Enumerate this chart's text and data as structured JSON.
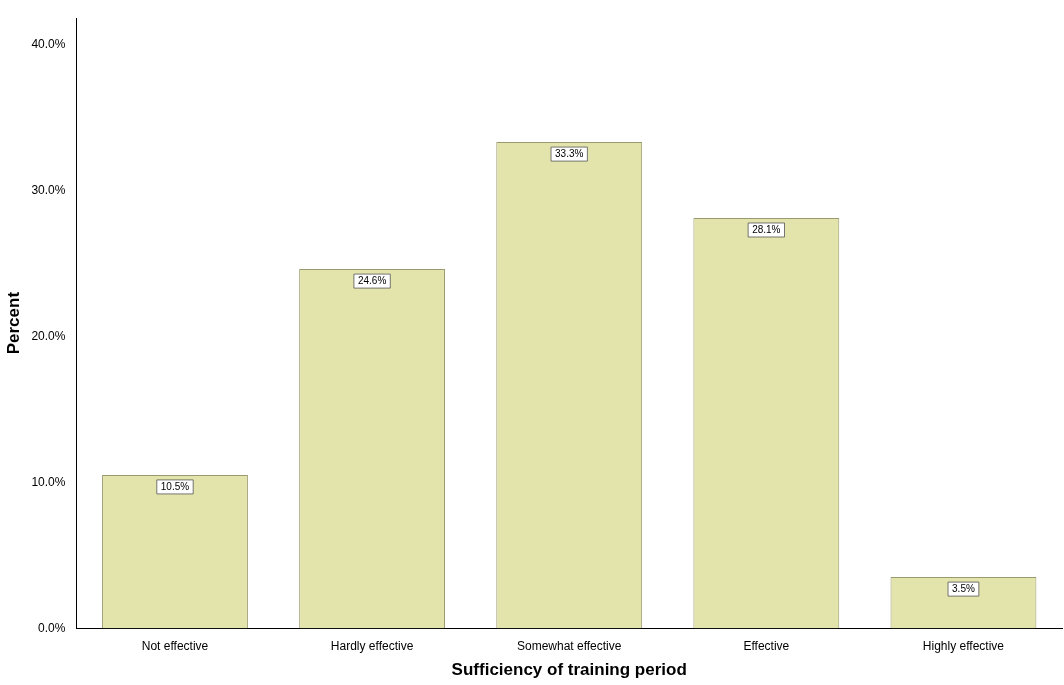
{
  "chart_data": {
    "type": "bar",
    "xlabel": "Sufficiency of training period",
    "ylabel": "Percent",
    "categories": [
      "Not effective",
      "Hardly effective",
      "Somewhat effective",
      "Effective",
      "Highly effective"
    ],
    "values": [
      10.5,
      24.6,
      33.3,
      28.1,
      3.5
    ],
    "value_labels": [
      "10.5%",
      "24.6%",
      "33.3%",
      "28.1%",
      "3.5%"
    ],
    "color": "#e3e3ac",
    "ylim": [
      0,
      41.8
    ],
    "yticks": [
      {
        "value": 0,
        "label": "0.0%"
      },
      {
        "value": 10,
        "label": "10.0%"
      },
      {
        "value": 20,
        "label": "20.0%"
      },
      {
        "value": 30,
        "label": "30.0%"
      },
      {
        "value": 40,
        "label": "40.0%"
      }
    ],
    "grid": false,
    "legend": false
  }
}
